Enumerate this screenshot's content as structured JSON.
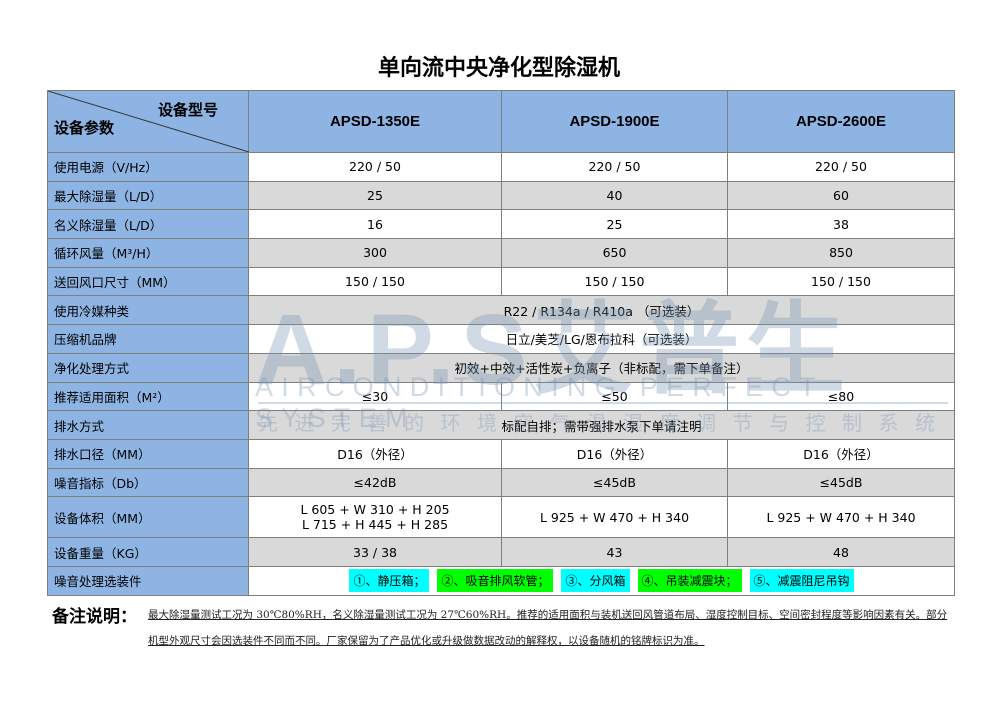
{
  "title": "单向流中央净化型除湿机",
  "header": {
    "model_label": "设备型号",
    "param_label": "设备参数",
    "models": [
      "APSD-1350E",
      "APSD-1900E",
      "APSD-2600E"
    ]
  },
  "rows": [
    {
      "label": "使用电源（V/Hz）",
      "values": [
        "220 / 50",
        "220 / 50",
        "220 / 50"
      ]
    },
    {
      "label": "最大除湿量（L/D）",
      "values": [
        "25",
        "40",
        "60"
      ]
    },
    {
      "label": "名义除湿量（L/D）",
      "values": [
        "16",
        "25",
        "38"
      ]
    },
    {
      "label": "循环风量（M³/H）",
      "values": [
        "300",
        "650",
        "850"
      ]
    },
    {
      "label": "送回风口尺寸（MM）",
      "values": [
        "150 / 150",
        "150 / 150",
        "150 / 150"
      ]
    },
    {
      "label": "使用冷媒种类",
      "merged": "R22 / R134a / R410a （可选装）"
    },
    {
      "label": "压缩机品牌",
      "merged": "日立/美芝/LG/恩布拉科（可选装）"
    },
    {
      "label": "净化处理方式",
      "merged": "初效+中效+活性炭+负离子（非标配，需下单备注）"
    },
    {
      "label": "推荐适用面积（M²）",
      "values": [
        "≤30",
        "≤50",
        "≤80"
      ]
    },
    {
      "label": "排水方式",
      "merged": "标配自排；需带强排水泵下单请注明"
    },
    {
      "label": "排水口径（MM）",
      "values": [
        "D16（外径）",
        "D16（外径）",
        "D16（外径）"
      ]
    },
    {
      "label": "噪音指标（Db）",
      "values": [
        "≤42dB",
        "≤45dB",
        "≤45dB"
      ]
    },
    {
      "label": "设备体积（MM）",
      "values": [
        "L 605 + W 310 + H 205",
        "L 925 + W 470 + H 340",
        "L 925 + W 470 + H 340"
      ],
      "value0_line2": "L 715 + H 445 + H 285"
    },
    {
      "label": "设备重量（KG）",
      "values": [
        "33 / 38",
        "43",
        "48"
      ]
    },
    {
      "label": "噪音处理选装件",
      "options": [
        {
          "text": "①、静压箱；",
          "color": "#00ffff"
        },
        {
          "text": "②、吸音排风软管；",
          "color": "#00ff00"
        },
        {
          "text": "③、分风箱",
          "color": "#00ffff"
        },
        {
          "text": "④、吊装减震块；",
          "color": "#00ff00"
        },
        {
          "text": "⑤、减震阻尼吊钩",
          "color": "#00ffff"
        }
      ]
    }
  ],
  "note": {
    "heading": "备注说明：",
    "text": "最大除湿量测试工况为 30℃80%RH，名义除湿量测试工况为 27℃60%RH。推荐的适用面积与装机送回风管道布局、湿度控制目标、空间密封程度等影响因素有关。部分机型外观尺寸会因选装件不同而不同。厂家保留为了产品优化或升级做数据改动的解释权，以设备随机的铭牌标识为准。"
  },
  "watermark": {
    "logo": "A.P.S艾普生",
    "subtitle": "AIRCONDITIONING PERFECT SYSTEM",
    "slogan": "先进完善的环境空气温湿度调节与控制系统"
  },
  "colors": {
    "label_bg": "#8eb4e3",
    "alt_row": "#d9d9d9"
  }
}
